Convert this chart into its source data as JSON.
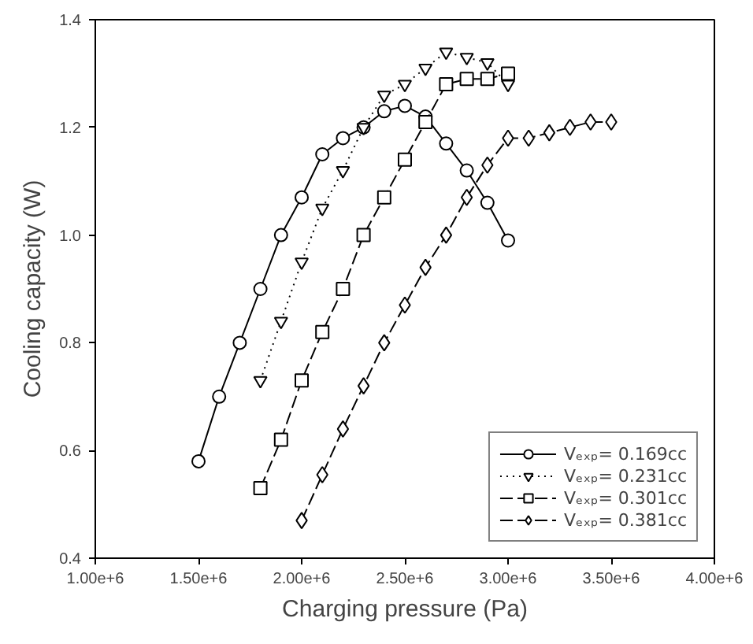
{
  "chart_data": {
    "type": "line",
    "xlabel": "Charging pressure (Pa)",
    "ylabel": "Cooling capacity (W)",
    "xlim": [
      1000000,
      4000000
    ],
    "ylim": [
      0.4,
      1.4
    ],
    "xticks": [
      {
        "value": 1000000,
        "label": "1.00e+6"
      },
      {
        "value": 1500000,
        "label": "1.50e+6"
      },
      {
        "value": 2000000,
        "label": "2.00e+6"
      },
      {
        "value": 2500000,
        "label": "2.50e+6"
      },
      {
        "value": 3000000,
        "label": "3.00e+6"
      },
      {
        "value": 3500000,
        "label": "3.50e+6"
      },
      {
        "value": 4000000,
        "label": "4.00e+6"
      }
    ],
    "yticks": [
      0.4,
      0.6,
      0.8,
      {
        "value": 1,
        "label": "1.0"
      },
      1.2,
      1.4
    ],
    "grid": false,
    "legend": "bottom right",
    "series": [
      {
        "name": "Vₑₓₚ= 0.169cc",
        "color": "#000000",
        "marker": "circle",
        "line_style": "solid",
        "x": [
          1500000,
          1600000,
          1700000,
          1800000,
          1900000,
          2000000,
          2100000,
          2200000,
          2300000,
          2400000,
          2500000,
          2600000,
          2700000,
          2800000,
          2900000,
          3000000
        ],
        "values": [
          0.58,
          0.7,
          0.8,
          0.9,
          1.0,
          1.07,
          1.15,
          1.18,
          1.2,
          1.23,
          1.24,
          1.22,
          1.17,
          1.12,
          1.06,
          0.99
        ]
      },
      {
        "name": "Vₑₓₚ= 0.231cc",
        "color": "#000000",
        "marker": "triangle",
        "line_style": "dotted",
        "x": [
          1800000,
          1900000,
          2000000,
          2100000,
          2200000,
          2300000,
          2400000,
          2500000,
          2600000,
          2700000,
          2800000,
          2900000,
          3000000
        ],
        "values": [
          0.73,
          0.84,
          0.95,
          1.05,
          1.12,
          1.2,
          1.26,
          1.28,
          1.31,
          1.34,
          1.33,
          1.32,
          1.28
        ]
      },
      {
        "name": "Vₑₓₚ= 0.301cc",
        "color": "#000000",
        "marker": "square",
        "line_style": "dashed",
        "x": [
          1800000,
          1900000,
          2000000,
          2100000,
          2200000,
          2300000,
          2400000,
          2500000,
          2600000,
          2700000,
          2800000,
          2900000,
          3000000
        ],
        "values": [
          0.53,
          0.62,
          0.73,
          0.82,
          0.9,
          1.0,
          1.07,
          1.14,
          1.21,
          1.28,
          1.29,
          1.29,
          1.3
        ]
      },
      {
        "name": "Vₑₓₚ= 0.381cc",
        "color": "#000000",
        "marker": "diamond",
        "line_style": "dashed",
        "x": [
          2000000,
          2100000,
          2200000,
          2300000,
          2400000,
          2500000,
          2600000,
          2700000,
          2800000,
          2900000,
          3000000,
          3100000,
          3200000,
          3300000,
          3400000,
          3500000
        ],
        "values": [
          0.47,
          0.555,
          0.64,
          0.72,
          0.8,
          0.87,
          0.94,
          1.0,
          1.07,
          1.13,
          1.18,
          1.18,
          1.19,
          1.2,
          1.21,
          1.21
        ]
      }
    ]
  }
}
